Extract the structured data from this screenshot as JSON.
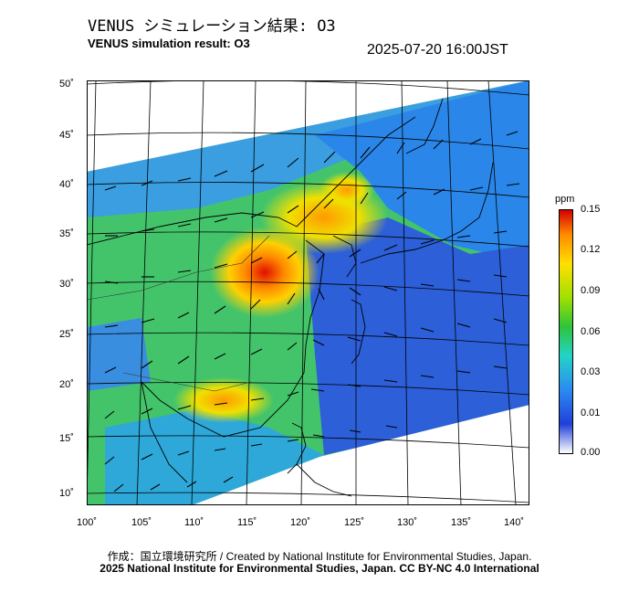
{
  "title_jp": "VENUS シミュレーション結果: O3",
  "title_en": "VENUS simulation result: O3",
  "timestamp": "2025-07-20 16:00JST",
  "lat_ticks": [
    "50˚",
    "45˚",
    "40˚",
    "35˚",
    "30˚",
    "25˚",
    "20˚",
    "15˚",
    "10˚"
  ],
  "lon_ticks": [
    "100˚",
    "105˚",
    "110˚",
    "115˚",
    "120˚",
    "125˚",
    "130˚",
    "135˚",
    "140˚"
  ],
  "colorbar": {
    "unit": "ppm",
    "labels": [
      "0.15",
      "0.12",
      "0.09",
      "0.06",
      "0.03",
      "0.01",
      "0.00"
    ],
    "colors": [
      "#d40000",
      "#ff8a00",
      "#ffe000",
      "#a0e000",
      "#2ec43a",
      "#22d4c8",
      "#2c8af0",
      "#2040d8",
      "#ffffff"
    ]
  },
  "credit_line1": "作成：国立環境研究所 / Created by National Institute for Environmental Studies, Japan.",
  "credit_line2": "2025 National Institute for Environmental Studies, Japan. CC BY-NC 4.0 International"
}
